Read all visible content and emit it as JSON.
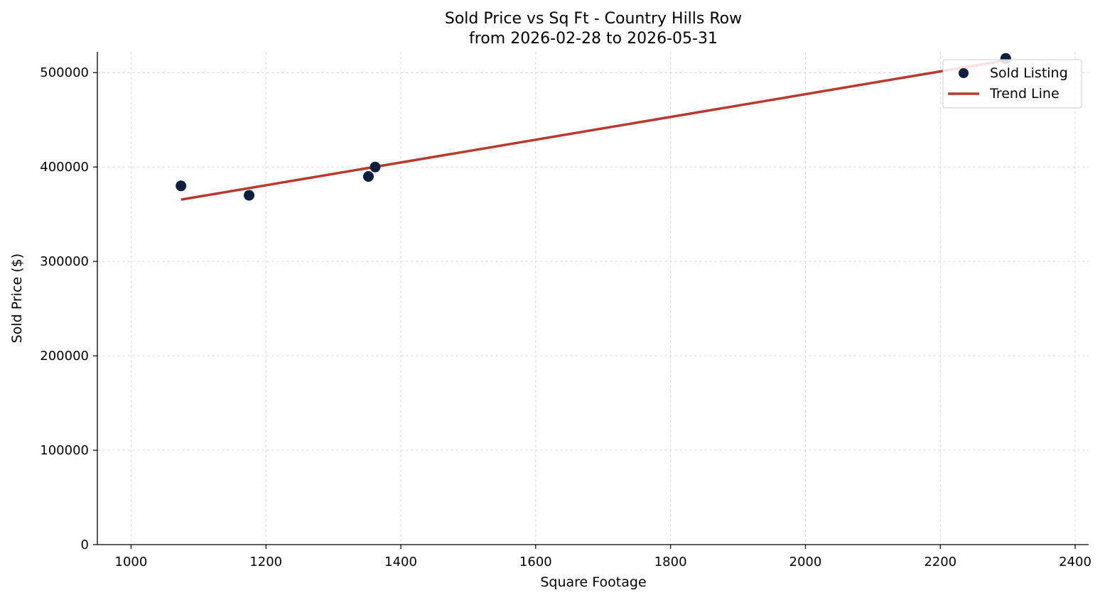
{
  "chart_data": {
    "type": "scatter",
    "title": "Sold Price vs Sq Ft - Country Hills Row",
    "subtitle": "from 2026-02-28 to 2026-05-31",
    "xlabel": "Square Footage",
    "ylabel": "Sold Price ($)",
    "xlim": [
      950,
      2420
    ],
    "ylim": [
      0,
      522000
    ],
    "xticks": [
      1000,
      1200,
      1400,
      1600,
      1800,
      2000,
      2200,
      2400
    ],
    "yticks": [
      0,
      100000,
      200000,
      300000,
      400000,
      500000
    ],
    "xtick_labels": [
      "1000",
      "1200",
      "1400",
      "1600",
      "1800",
      "2000",
      "2200",
      "2400"
    ],
    "ytick_labels": [
      "0",
      "100000",
      "200000",
      "300000",
      "400000",
      "500000"
    ],
    "grid": true,
    "legend_position": "top-right",
    "series": [
      {
        "name": "Sold Listing",
        "kind": "scatter",
        "color": "#0d1f3c",
        "points": [
          {
            "x": 1074,
            "y": 380000
          },
          {
            "x": 1175,
            "y": 370000
          },
          {
            "x": 1352,
            "y": 390000
          },
          {
            "x": 1362,
            "y": 400000
          },
          {
            "x": 2297,
            "y": 515000
          }
        ]
      },
      {
        "name": "Trend Line",
        "kind": "line",
        "color": "#b83a2e",
        "points": [
          {
            "x": 1074,
            "y": 365500
          },
          {
            "x": 2297,
            "y": 513000
          }
        ]
      }
    ]
  }
}
